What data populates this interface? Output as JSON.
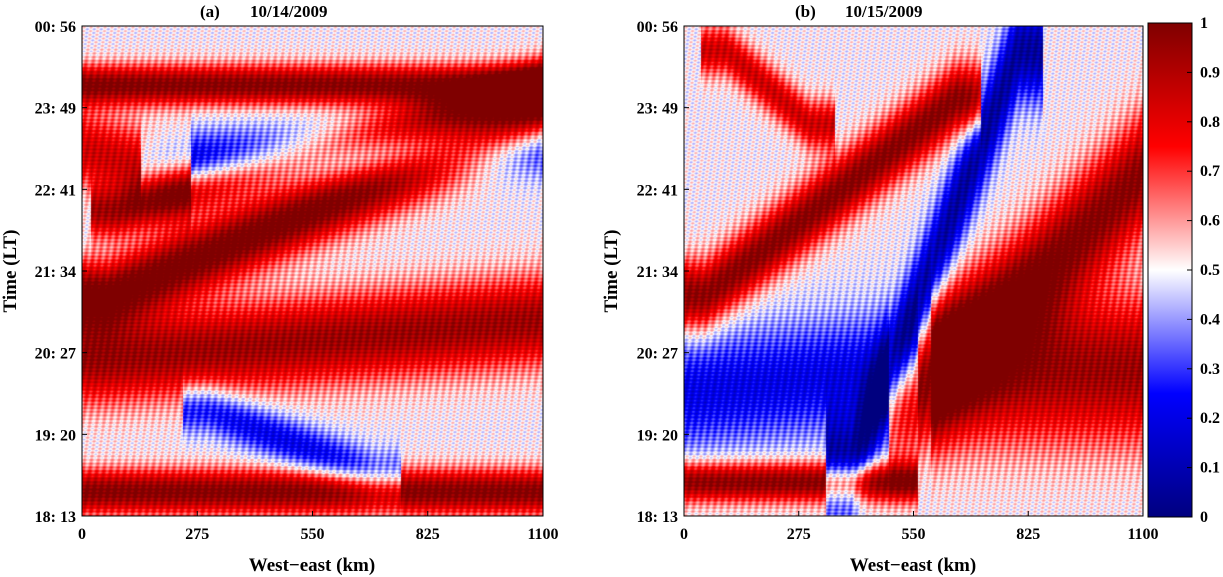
{
  "chart_data": [
    {
      "type": "heatmap",
      "panel_label": "(a)",
      "title": "10/14/2009",
      "xlabel": "West−east (km)",
      "ylabel": "Time (LT)",
      "xlim": [
        0,
        1100
      ],
      "x_ticks": [
        0,
        275,
        550,
        825,
        1100
      ],
      "x_tick_labels": [
        "0",
        "275",
        "550",
        "825",
        "1100"
      ],
      "y_tick_labels": [
        "18: 13",
        "19: 20",
        "20: 27",
        "21: 34",
        "22: 41",
        "23: 49",
        "00: 56"
      ],
      "features": [
        {
          "x0": 20,
          "y0": 0.05,
          "x1": 1100,
          "y1": 0.05,
          "amp": 0.5,
          "w": 0.045
        },
        {
          "x0": 50,
          "y0": 0.32,
          "x1": 1100,
          "y1": 0.4,
          "amp": 0.45,
          "w": 0.09
        },
        {
          "x0": 60,
          "y0": 0.45,
          "x1": 1100,
          "y1": 0.82,
          "amp": 0.55,
          "w": 0.07
        },
        {
          "x0": 80,
          "y0": 0.62,
          "x1": 1100,
          "y1": 0.88,
          "amp": 0.4,
          "w": 0.05
        },
        {
          "x0": 200,
          "y0": 0.72,
          "x1": 1100,
          "y1": 0.76,
          "amp": -0.35,
          "w": 0.06
        },
        {
          "x0": 0,
          "y0": 0.88,
          "x1": 1100,
          "y1": 0.88,
          "amp": 0.5,
          "w": 0.04
        },
        {
          "x0": 300,
          "y0": 0.22,
          "x1": 700,
          "y1": 0.08,
          "amp": -0.3,
          "w": 0.05
        },
        {
          "x0": 0,
          "y0": 0.75,
          "x1": 200,
          "y1": 0.7,
          "amp": 0.35,
          "w": 0.08
        }
      ]
    },
    {
      "type": "heatmap",
      "panel_label": "(b)",
      "title": "10/15/2009",
      "xlabel": "West−east (km)",
      "ylabel": "Time (LT)",
      "xlim": [
        0,
        1100
      ],
      "x_ticks": [
        0,
        275,
        550,
        825,
        1100
      ],
      "x_tick_labels": [
        "0",
        "275",
        "550",
        "825",
        "1100"
      ],
      "y_tick_labels": [
        "18: 13",
        "19: 20",
        "20: 27",
        "21: 34",
        "22: 41",
        "23: 49",
        "00: 56"
      ],
      "colorbar": {
        "ticks": [
          0,
          0.1,
          0.2,
          0.3,
          0.4,
          0.5,
          0.6,
          0.7,
          0.8,
          0.9,
          1
        ],
        "tick_labels": [
          "0",
          "0.1",
          "0.2",
          "0.3",
          "0.4",
          "0.5",
          "0.6",
          "0.7",
          "0.8",
          "0.9",
          "1"
        ],
        "colors": [
          "#00007f",
          "#0000ff",
          "#ffffff",
          "#ff0000",
          "#7f0000"
        ]
      },
      "features": [
        {
          "x0": 20,
          "y0": 0.07,
          "x1": 500,
          "y1": 0.07,
          "amp": 0.5,
          "w": 0.04
        },
        {
          "x0": 50,
          "y0": 0.45,
          "x1": 650,
          "y1": 0.85,
          "amp": 0.5,
          "w": 0.07
        },
        {
          "x0": 550,
          "y0": 0.25,
          "x1": 1100,
          "y1": 0.7,
          "amp": 0.5,
          "w": 0.12
        },
        {
          "x0": 650,
          "y0": 0.3,
          "x1": 1100,
          "y1": 0.3,
          "amp": 0.45,
          "w": 0.15
        },
        {
          "x0": 100,
          "y0": 0.95,
          "x1": 300,
          "y1": 0.8,
          "amp": 0.35,
          "w": 0.05
        },
        {
          "x0": 400,
          "y0": 0.1,
          "x1": 800,
          "y1": 0.95,
          "amp": -0.45,
          "w": 0.1
        },
        {
          "x0": 0,
          "y0": 0.25,
          "x1": 500,
          "y1": 0.3,
          "amp": -0.3,
          "w": 0.12
        }
      ]
    }
  ]
}
